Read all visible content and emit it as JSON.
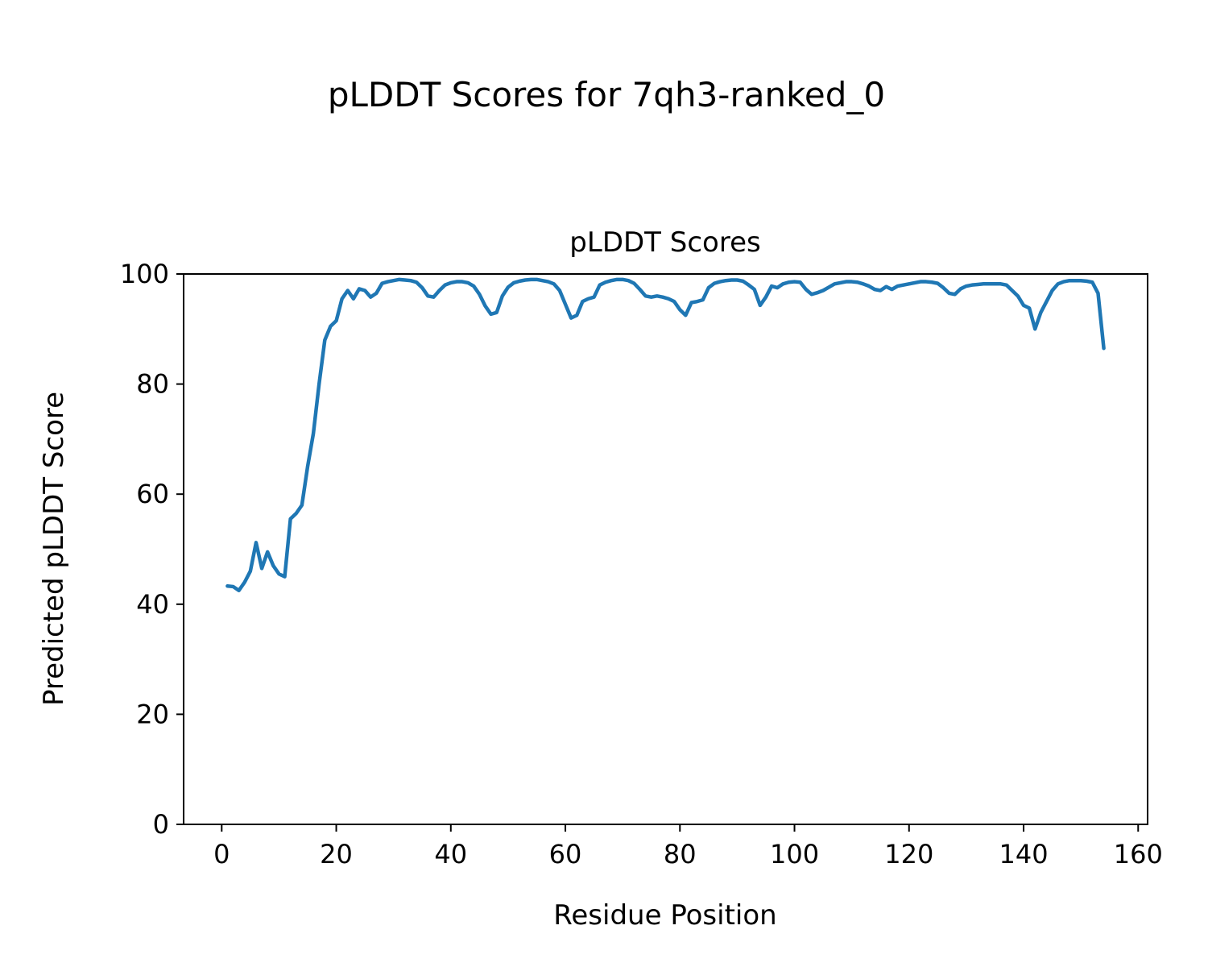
{
  "figure": {
    "suptitle": "pLDDT Scores for 7qh3-ranked_0"
  },
  "chart_data": {
    "type": "line",
    "title": "pLDDT Scores",
    "xlabel": "Residue Position",
    "ylabel": "Predicted pLDDT Score",
    "xlim": [
      -6.65,
      161.65
    ],
    "ylim": [
      0,
      100
    ],
    "xticks": [
      0,
      20,
      40,
      60,
      80,
      100,
      120,
      140,
      160
    ],
    "yticks": [
      0,
      20,
      40,
      60,
      80,
      100
    ],
    "grid": false,
    "legend": "none",
    "line_color": "#1f77b4",
    "line_width": 4.5,
    "series": [
      {
        "name": "pLDDT",
        "x_start": 1,
        "values": [
          43.3,
          43.2,
          42.5,
          44.0,
          46.0,
          51.2,
          46.5,
          49.5,
          47.0,
          45.5,
          45.0,
          55.5,
          56.5,
          58.0,
          65.0,
          71.0,
          80.0,
          88.0,
          90.5,
          91.5,
          95.5,
          97.0,
          95.5,
          97.3,
          97.0,
          95.8,
          96.5,
          98.3,
          98.6,
          98.8,
          99.0,
          98.9,
          98.8,
          98.5,
          97.5,
          96.0,
          95.8,
          97.0,
          98.0,
          98.4,
          98.6,
          98.6,
          98.4,
          97.8,
          96.3,
          94.2,
          92.7,
          93.0,
          96.0,
          97.6,
          98.4,
          98.7,
          98.9,
          99.0,
          99.0,
          98.8,
          98.6,
          98.2,
          97.0,
          94.5,
          92.0,
          92.5,
          95.0,
          95.5,
          95.8,
          98.0,
          98.5,
          98.8,
          99.0,
          99.0,
          98.8,
          98.3,
          97.2,
          96.0,
          95.8,
          96.0,
          95.8,
          95.5,
          95.0,
          93.5,
          92.5,
          94.8,
          95.0,
          95.3,
          97.5,
          98.3,
          98.6,
          98.8,
          98.9,
          98.9,
          98.7,
          98.0,
          97.2,
          94.3,
          95.8,
          97.8,
          97.5,
          98.2,
          98.5,
          98.6,
          98.5,
          97.2,
          96.3,
          96.6,
          97.0,
          97.6,
          98.2,
          98.4,
          98.6,
          98.6,
          98.5,
          98.2,
          97.8,
          97.2,
          97.0,
          97.7,
          97.2,
          97.8,
          98.0,
          98.2,
          98.4,
          98.6,
          98.6,
          98.5,
          98.3,
          97.5,
          96.5,
          96.3,
          97.3,
          97.8,
          98.0,
          98.1,
          98.2,
          98.2,
          98.2,
          98.2,
          98.0,
          97.0,
          96.0,
          94.3,
          93.8,
          90.0,
          93.0,
          95.0,
          97.0,
          98.2,
          98.6,
          98.8,
          98.8,
          98.8,
          98.7,
          98.5,
          96.5,
          86.5
        ]
      }
    ]
  }
}
